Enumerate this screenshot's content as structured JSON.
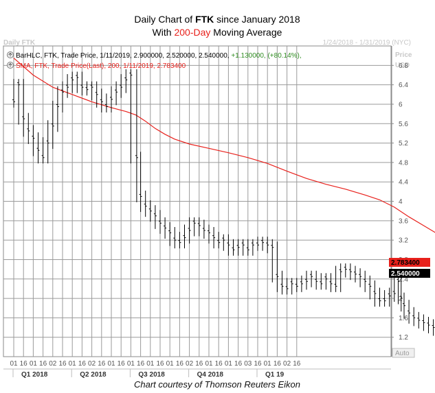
{
  "header": {
    "title_prefix": "Daily Chart of ",
    "title_ticker": "FTK",
    "title_suffix": " since January 2018",
    "subtitle_prefix": "With ",
    "subtitle_highlight": "200-Day",
    "subtitle_suffix": " Moving Average"
  },
  "panel": {
    "label_left": "Daily FTK",
    "label_right": "1/24/2018 - 1/31/2019 (NYC)",
    "axis_unit_1": "Price",
    "axis_unit_2": "USD",
    "auto_button": "Auto"
  },
  "legend": {
    "price_prefix": "BarHLC, FTK, Trade Price, 1/11/2019, 2.900000, 2.520000, 2.540000, ",
    "price_change": "+1.130000, (+80.14%),",
    "sma_text": "SMA, FTK, Trade Price(Last),  200,  1/11/2019, 2.783400"
  },
  "value_boxes": {
    "sma": "2.783400",
    "price": "2.540000"
  },
  "credit": "Chart courtesy of Thomson Reuters Eikon",
  "colors": {
    "price": "#000000",
    "sma": "#e8201b",
    "change": "#2e8b20",
    "sma_box": "#e8201b",
    "price_box": "#000000",
    "grid": "#9a9a9a",
    "title_highlight": "#e8201b"
  },
  "icons": [
    "chart-series-icon",
    "chart-series-icon"
  ],
  "chart_data": {
    "type": "line",
    "ylim": [
      0.8,
      7.2
    ],
    "yticks": [
      1.2,
      1.6,
      2,
      2.4,
      2.8,
      3.2,
      3.6,
      4,
      4.4,
      4.8,
      5.2,
      5.6,
      6,
      6.4,
      6.8
    ],
    "ytick_labels": [
      "1.2",
      "1.6",
      "2",
      "2.4",
      "2.8",
      "3.2",
      "3.6",
      "4",
      "4.4",
      "4.8",
      "5.2",
      "5.6",
      "6",
      "6.4",
      "6.8"
    ],
    "xtick_labels": [
      "01",
      "16",
      "01",
      "16",
      "02",
      "16",
      "01",
      "16",
      "02",
      "16",
      "01",
      "16",
      "01",
      "16",
      "01",
      "16",
      "01",
      "16",
      "02",
      "16",
      "01",
      "16",
      "01",
      "16",
      "03",
      "16",
      "01",
      "16",
      "02",
      "16"
    ],
    "quarters": [
      {
        "label": "Q1 2018",
        "start_tick": 0
      },
      {
        "label": "Q2 2018",
        "start_tick": 6
      },
      {
        "label": "Q3 2018",
        "start_tick": 12
      },
      {
        "label": "Q4 2018",
        "start_tick": 18
      },
      {
        "label": "Q1 19",
        "start_tick": 25
      }
    ],
    "series": [
      {
        "name": "FTK",
        "kind": "bar_hlc",
        "points": [
          [
            0.0,
            6.05
          ],
          [
            0.5,
            6.4
          ],
          [
            1.0,
            5.7
          ],
          [
            1.5,
            5.45
          ],
          [
            2.0,
            5.3
          ],
          [
            2.5,
            5.05
          ],
          [
            3.0,
            4.9
          ],
          [
            3.5,
            5.2
          ],
          [
            4.0,
            5.55
          ],
          [
            4.5,
            5.95
          ],
          [
            5.0,
            6.25
          ],
          [
            5.5,
            6.35
          ],
          [
            6.0,
            6.5
          ],
          [
            6.5,
            6.55
          ],
          [
            7.0,
            6.35
          ],
          [
            7.5,
            6.3
          ],
          [
            8.0,
            6.35
          ],
          [
            8.5,
            6.2
          ],
          [
            9.0,
            6.05
          ],
          [
            9.5,
            5.95
          ],
          [
            10.0,
            6.1
          ],
          [
            10.5,
            6.25
          ],
          [
            11.0,
            6.35
          ],
          [
            11.5,
            6.5
          ],
          [
            12.0,
            6.6
          ],
          [
            12.6,
            4.9
          ],
          [
            13.0,
            4.1
          ],
          [
            13.5,
            3.9
          ],
          [
            14.0,
            3.8
          ],
          [
            14.5,
            3.7
          ],
          [
            15.0,
            3.55
          ],
          [
            15.5,
            3.45
          ],
          [
            16.0,
            3.35
          ],
          [
            16.5,
            3.2
          ],
          [
            17.0,
            3.15
          ],
          [
            17.5,
            3.25
          ],
          [
            18.0,
            3.4
          ],
          [
            18.5,
            3.55
          ],
          [
            19.0,
            3.5
          ],
          [
            19.5,
            3.4
          ],
          [
            20.0,
            3.35
          ],
          [
            20.5,
            3.25
          ],
          [
            21.0,
            3.15
          ],
          [
            21.5,
            3.2
          ],
          [
            22.0,
            3.1
          ],
          [
            22.5,
            3.0
          ],
          [
            23.0,
            3.05
          ],
          [
            23.5,
            3.1
          ],
          [
            24.0,
            3.0
          ],
          [
            24.5,
            3.1
          ],
          [
            25.0,
            3.1
          ],
          [
            25.5,
            3.15
          ],
          [
            26.0,
            3.1
          ],
          [
            26.5,
            3.05
          ],
          [
            27.0,
            2.45
          ],
          [
            27.5,
            2.25
          ],
          [
            28.0,
            2.2
          ],
          [
            28.5,
            2.3
          ],
          [
            29.0,
            2.25
          ],
          [
            29.5,
            2.3
          ],
          [
            30.0,
            2.35
          ],
          [
            30.5,
            2.45
          ],
          [
            31.0,
            2.35
          ],
          [
            31.5,
            2.3
          ],
          [
            32.0,
            2.4
          ],
          [
            32.5,
            2.3
          ],
          [
            33.0,
            2.25
          ],
          [
            33.5,
            2.55
          ],
          [
            34.0,
            2.6
          ],
          [
            34.5,
            2.55
          ],
          [
            35.0,
            2.5
          ],
          [
            35.5,
            2.45
          ],
          [
            36.0,
            2.35
          ],
          [
            36.5,
            2.25
          ],
          [
            37.0,
            2.1
          ],
          [
            37.5,
            1.95
          ],
          [
            38.0,
            1.95
          ],
          [
            38.5,
            2.05
          ],
          [
            39.0,
            2.1
          ],
          [
            39.4,
            2.35
          ],
          [
            39.7,
            2.0
          ],
          [
            40.0,
            1.85
          ],
          [
            40.5,
            1.7
          ],
          [
            41.0,
            1.6
          ],
          [
            41.5,
            1.55
          ],
          [
            42.0,
            1.5
          ],
          [
            42.5,
            1.45
          ],
          [
            43.0,
            1.4
          ],
          [
            43.5,
            1.35
          ],
          [
            44.0,
            1.3
          ],
          [
            44.5,
            1.2
          ],
          [
            45.0,
            1.15
          ],
          [
            45.5,
            1.1
          ],
          [
            46.0,
            1.08
          ],
          [
            46.5,
            1.05
          ],
          [
            47.0,
            1.1
          ],
          [
            47.5,
            1.2
          ],
          [
            48.0,
            1.45
          ],
          [
            48.5,
            1.48
          ],
          [
            49.6,
            2.54
          ]
        ]
      },
      {
        "name": "SMA 200",
        "kind": "line",
        "points": [
          [
            0.0,
            6.95
          ],
          [
            2.0,
            6.6
          ],
          [
            4.0,
            6.35
          ],
          [
            6.0,
            6.2
          ],
          [
            8.0,
            6.05
          ],
          [
            10.0,
            5.93
          ],
          [
            11.5,
            5.85
          ],
          [
            12.5,
            5.78
          ],
          [
            13.5,
            5.65
          ],
          [
            14.5,
            5.5
          ],
          [
            15.5,
            5.38
          ],
          [
            16.5,
            5.28
          ],
          [
            18.0,
            5.18
          ],
          [
            20.0,
            5.09
          ],
          [
            22.0,
            5.0
          ],
          [
            24.0,
            4.9
          ],
          [
            26.0,
            4.78
          ],
          [
            28.0,
            4.62
          ],
          [
            30.0,
            4.47
          ],
          [
            32.0,
            4.35
          ],
          [
            34.0,
            4.25
          ],
          [
            36.0,
            4.13
          ],
          [
            37.5,
            4.03
          ],
          [
            39.0,
            3.88
          ],
          [
            40.5,
            3.68
          ],
          [
            42.0,
            3.5
          ],
          [
            43.5,
            3.32
          ],
          [
            45.0,
            3.17
          ],
          [
            46.5,
            3.03
          ],
          [
            48.0,
            2.9
          ],
          [
            49.6,
            2.783
          ]
        ]
      }
    ]
  }
}
